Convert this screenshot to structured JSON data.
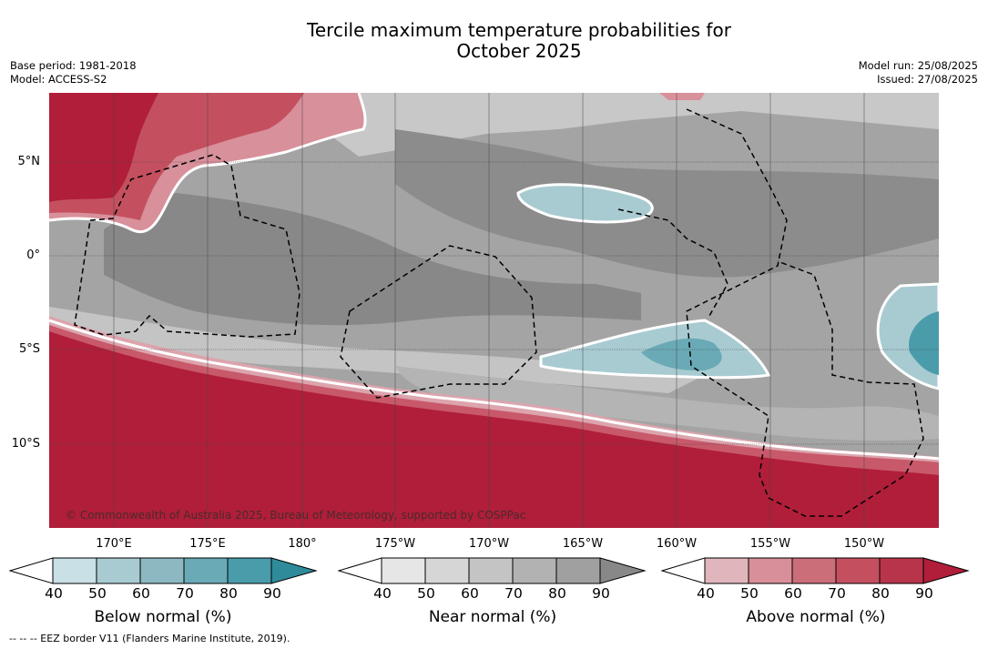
{
  "title_line1": "Tercile maximum temperature probabilities for",
  "title_line2": "October 2025",
  "base_period": "Base period: 1981-2018",
  "model": "Model: ACCESS-S2",
  "model_run": "Model run: 25/08/2025",
  "issued": "Issued: 27/08/2025",
  "lat_labels": [
    "5°N",
    "0°",
    "5°S",
    "10°S"
  ],
  "lon_labels": [
    "170°E",
    "175°E",
    "180°",
    "175°W",
    "170°W",
    "165°W",
    "160°W",
    "155°W",
    "150°W"
  ],
  "copyright": "© Commonwealth of Australia 2025, Bureau of Meteorology, supported by COSPPac",
  "legends": [
    {
      "label": "Below normal (%)",
      "ticks": [
        "40",
        "50",
        "60",
        "70",
        "80",
        "90"
      ],
      "colors": [
        "#c8e0e6",
        "#a8cbd1",
        "#8cb8c2",
        "#6aaab6",
        "#4a9cab",
        "#2f8b9a"
      ]
    },
    {
      "label": "Near normal (%)",
      "ticks": [
        "40",
        "50",
        "60",
        "70",
        "80",
        "90"
      ],
      "colors": [
        "#e6e6e6",
        "#d6d6d6",
        "#c4c4c4",
        "#b2b2b2",
        "#a0a0a0",
        "#888888"
      ]
    },
    {
      "label": "Above normal (%)",
      "ticks": [
        "40",
        "50",
        "60",
        "70",
        "80",
        "90"
      ],
      "colors": [
        "#e0b6bc",
        "#d88f99",
        "#cc6d7a",
        "#c4505f",
        "#b8344a",
        "#b01e3a"
      ]
    }
  ],
  "footnote": "--  --  -- EEZ border V11 (Flanders Marine Institute, 2019)."
}
